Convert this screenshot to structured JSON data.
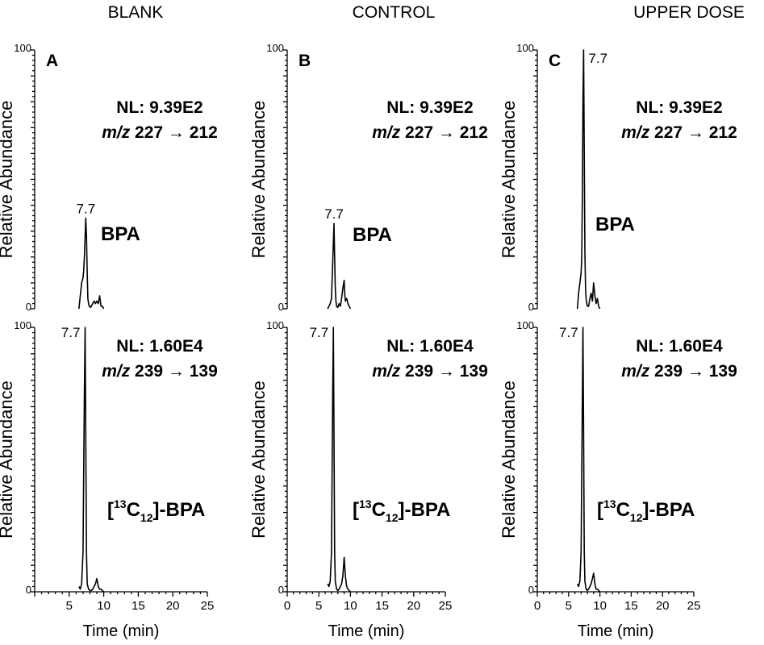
{
  "column_headers": [
    "BLANK",
    "CONTROL",
    "UPPER DOSE"
  ],
  "chart_data": [
    {
      "type": "line",
      "panel": "A",
      "column": "BLANK",
      "row": "top",
      "nl": "NL: 9.39E2",
      "mz_label": "m/z",
      "mz_value": " 227 → 212",
      "compound": "BPA",
      "peak_label": "7.7",
      "xlabel": "",
      "ylabel": "Relative Abundance",
      "xlim": [
        0,
        25
      ],
      "ylim": [
        0,
        100
      ],
      "ytick_labels": [
        "0",
        "100"
      ],
      "xticks": [],
      "series": [
        {
          "x": [
            6.4,
            6.6,
            6.8,
            7.0,
            7.1,
            7.2,
            7.3,
            7.4,
            7.5,
            7.6,
            7.7,
            7.8,
            7.9,
            8.0,
            8.1,
            8.2,
            8.4,
            8.6,
            8.8,
            9.0,
            9.2,
            9.4,
            9.6,
            9.8,
            10.0
          ],
          "y": [
            0,
            5,
            10,
            12,
            15,
            20,
            28,
            35,
            28,
            14,
            4,
            2,
            1,
            1,
            0.5,
            1,
            2,
            3,
            2,
            3,
            2,
            5,
            1,
            1,
            0
          ]
        }
      ]
    },
    {
      "type": "line",
      "panel": "B",
      "column": "CONTROL",
      "row": "top",
      "nl": "NL: 9.39E2",
      "mz_label": "m/z",
      "mz_value": " 227 → 212",
      "compound": "BPA",
      "peak_label": "7.7",
      "xlabel": "",
      "ylabel": "Relative Abundance",
      "xlim": [
        0,
        25
      ],
      "ylim": [
        0,
        100
      ],
      "ytick_labels": [
        "0",
        "100"
      ],
      "xticks": [],
      "series": [
        {
          "x": [
            6.4,
            6.6,
            6.8,
            7.0,
            7.2,
            7.4,
            7.5,
            7.6,
            7.7,
            7.8,
            8.0,
            8.2,
            8.4,
            8.6,
            8.8,
            9.0,
            9.1,
            9.2,
            9.4,
            9.6,
            9.8,
            10.0
          ],
          "y": [
            0,
            1,
            2,
            4,
            18,
            33,
            20,
            8,
            3,
            1,
            0.5,
            2,
            1,
            4,
            8,
            11,
            6,
            3,
            4,
            2,
            1,
            0
          ]
        }
      ]
    },
    {
      "type": "line",
      "panel": "C",
      "column": "UPPER DOSE",
      "row": "top",
      "nl": "NL: 9.39E2",
      "mz_label": "m/z",
      "mz_value": " 227 → 212",
      "compound": "BPA",
      "peak_label": "7.7",
      "xlabel": "",
      "ylabel": "Relative Abundance",
      "xlim": [
        0,
        25
      ],
      "ylim": [
        0,
        100
      ],
      "ytick_labels": [
        "0",
        "100"
      ],
      "xticks": [],
      "series": [
        {
          "x": [
            6.4,
            6.6,
            6.8,
            7.0,
            7.1,
            7.2,
            7.3,
            7.4,
            7.5,
            7.6,
            7.7,
            7.8,
            7.9,
            8.0,
            8.2,
            8.4,
            8.6,
            8.8,
            9.0,
            9.2,
            9.4,
            9.6,
            9.8,
            10.0
          ],
          "y": [
            0,
            6,
            10,
            14,
            20,
            45,
            80,
            100,
            60,
            22,
            8,
            4,
            2,
            1,
            1,
            4,
            6,
            3,
            10,
            5,
            2,
            4,
            1,
            0
          ]
        }
      ]
    },
    {
      "type": "line",
      "panel": "",
      "column": "BLANK",
      "row": "bottom",
      "nl": "NL: 1.60E4",
      "mz_label": "m/z",
      "mz_value": " 239 → 139",
      "compound_prefix": "[",
      "compound_sup": "13",
      "compound_c": "C",
      "compound_sub": "12",
      "compound_suffix": "]-BPA",
      "peak_label": "7.7",
      "xlabel": "Time (min)",
      "ylabel": "Relative Abundance",
      "xlim": [
        0,
        25
      ],
      "ylim": [
        0,
        100
      ],
      "ytick_labels": [
        "0",
        "100"
      ],
      "xticks": [
        5,
        10,
        15,
        20,
        25
      ],
      "series": [
        {
          "x": [
            6.4,
            6.6,
            6.8,
            7.0,
            7.2,
            7.3,
            7.4,
            7.5,
            7.6,
            7.8,
            8.0,
            8.2,
            8.4,
            8.6,
            8.8,
            9.0,
            9.2,
            9.4,
            9.6,
            9.8,
            10.0
          ],
          "y": [
            2,
            1,
            3,
            15,
            75,
            100,
            60,
            15,
            3,
            1,
            0.5,
            0.5,
            1,
            2,
            3,
            5,
            2,
            1,
            1,
            0.5,
            0
          ]
        }
      ]
    },
    {
      "type": "line",
      "panel": "",
      "column": "CONTROL",
      "row": "bottom",
      "nl": "NL: 1.60E4",
      "mz_label": "m/z",
      "mz_value": " 239 → 139",
      "compound_prefix": "[",
      "compound_sup": "13",
      "compound_c": "C",
      "compound_sub": "12",
      "compound_suffix": "]-BPA",
      "peak_label": "7.7",
      "xlabel": "Time (min)",
      "ylabel": "Relative Abundance",
      "xlim": [
        0,
        25
      ],
      "ylim": [
        0,
        100
      ],
      "ytick_labels": [
        "0",
        "100"
      ],
      "xticks": [
        0,
        5,
        10,
        15,
        20,
        25
      ],
      "series": [
        {
          "x": [
            6.4,
            6.6,
            6.8,
            7.0,
            7.2,
            7.3,
            7.4,
            7.5,
            7.6,
            7.8,
            8.0,
            8.2,
            8.4,
            8.6,
            8.8,
            9.0,
            9.2,
            9.4,
            9.6,
            9.8,
            10.0
          ],
          "y": [
            3,
            2,
            4,
            15,
            75,
            100,
            60,
            15,
            4,
            1,
            0.5,
            1,
            2,
            3,
            6,
            13,
            6,
            2,
            1,
            0.5,
            0
          ]
        }
      ]
    },
    {
      "type": "line",
      "panel": "",
      "column": "UPPER DOSE",
      "row": "bottom",
      "nl": "NL: 1.60E4",
      "mz_label": "m/z",
      "mz_value": " 239 → 139",
      "compound_prefix": "[",
      "compound_sup": "13",
      "compound_c": "C",
      "compound_sub": "12",
      "compound_suffix": "]-BPA",
      "peak_label": "7.7",
      "xlabel": "Time (min)",
      "ylabel": "Relative Abundance",
      "xlim": [
        0,
        25
      ],
      "ylim": [
        0,
        100
      ],
      "ytick_labels": [
        "0",
        "100"
      ],
      "xticks": [
        0,
        5,
        10,
        15,
        20,
        25
      ],
      "series": [
        {
          "x": [
            6.4,
            6.6,
            6.8,
            7.0,
            7.2,
            7.3,
            7.4,
            7.5,
            7.6,
            7.8,
            8.0,
            8.2,
            8.4,
            8.6,
            8.8,
            9.0,
            9.2,
            9.4,
            9.6,
            9.8,
            10.0
          ],
          "y": [
            3,
            2,
            4,
            15,
            75,
            100,
            60,
            15,
            4,
            1,
            0.5,
            1,
            2,
            3,
            5,
            7,
            3,
            1,
            1,
            0.5,
            0
          ]
        }
      ]
    }
  ]
}
